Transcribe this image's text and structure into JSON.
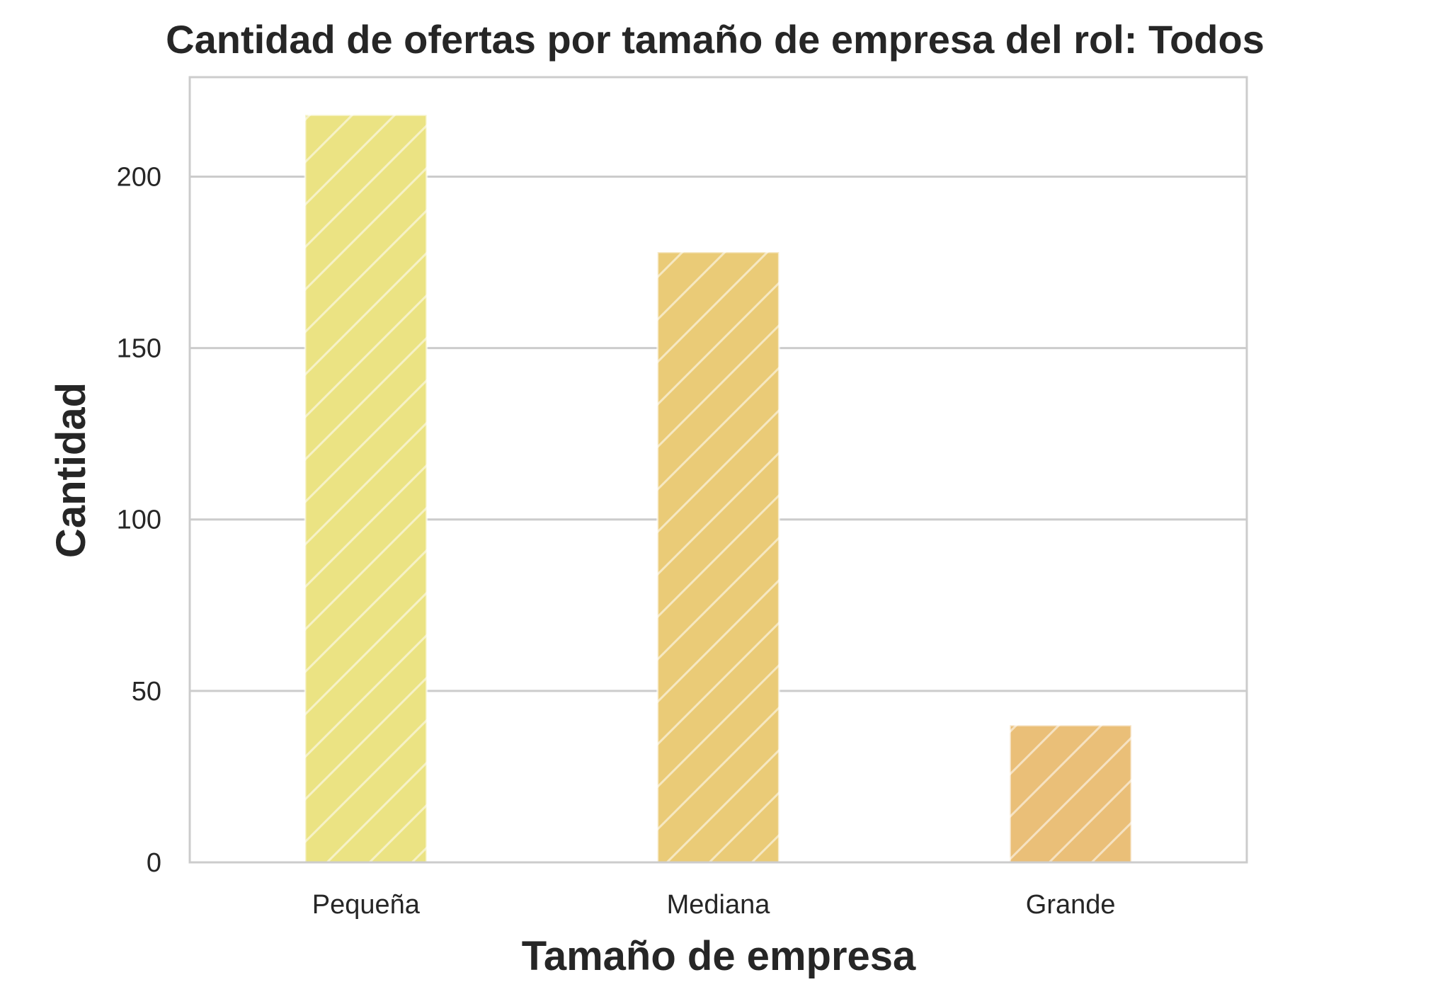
{
  "chart_data": {
    "type": "bar",
    "title": "Cantidad de ofertas por tamaño de empresa del rol: Todos",
    "xlabel": "Tamaño de empresa",
    "ylabel": "Cantidad",
    "categories": [
      "Pequeña",
      "Mediana",
      "Grande"
    ],
    "values": [
      218,
      178,
      40
    ],
    "ylim": [
      0,
      229
    ],
    "yticks": [
      0,
      50,
      100,
      150,
      200
    ],
    "grid": true,
    "bar_colors": [
      "#ebe383",
      "#eacb77",
      "#eabf78"
    ],
    "hatch": "diagonal",
    "hatch_color": "#ffffff"
  }
}
